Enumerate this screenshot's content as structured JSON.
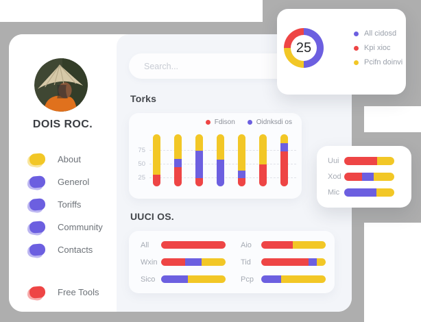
{
  "palette": {
    "red": "#ee4545",
    "purple": "#6c5fe0",
    "yellow": "#f2c726",
    "gray_background": "#aeaeae",
    "content_background": "#f3f5f9"
  },
  "profile": {
    "name": "DOIS ROC."
  },
  "sidebar": {
    "menu": [
      {
        "label": "About",
        "icon_color": "yellow"
      },
      {
        "label": "Generol",
        "icon_color": "purple"
      },
      {
        "label": "Toriffs",
        "icon_color": "purple"
      },
      {
        "label": "Community",
        "icon_color": "purple"
      },
      {
        "label": "Contacts",
        "icon_color": "purple"
      },
      {
        "label": "Free Tools",
        "icon_color": "red",
        "spacer_before": true
      }
    ]
  },
  "search": {
    "placeholder": "Search..."
  },
  "sections": {
    "torks": "Torks",
    "uuci": "UUCI OS."
  },
  "chart_data": [
    {
      "id": "torks",
      "type": "bar",
      "title": "Torks",
      "stacked": true,
      "grid": "horizontal-dashed",
      "y_ticks": [
        75,
        50,
        25
      ],
      "axis_range": [
        0,
        110
      ],
      "bar_span": [
        9,
        105
      ],
      "legend": [
        {
          "label": "Fdison",
          "color": "red"
        },
        {
          "label": "Oidnksdi os",
          "color": "purple"
        }
      ],
      "series": [
        {
          "name": "Fdison",
          "color": "red",
          "values": [
            21,
            35,
            15,
            0,
            15,
            40,
            65
          ]
        },
        {
          "name": "Oidnksdi os",
          "color": "purple",
          "values": [
            0,
            16,
            51,
            49,
            14,
            0,
            14
          ]
        },
        {
          "name": "top-fill",
          "color": "yellow",
          "values": [
            75,
            45,
            30,
            56,
            67,
            56,
            17
          ]
        }
      ]
    },
    {
      "id": "kpi-donut",
      "type": "pie",
      "center_label": "25",
      "legend": [
        {
          "label": "All cidosd",
          "color": "purple"
        },
        {
          "label": "Kpi xioc",
          "color": "red"
        },
        {
          "label": "Pcifn doinvi",
          "color": "yellow"
        }
      ],
      "arcs": [
        {
          "color": "purple",
          "from": 0,
          "to": 50
        },
        {
          "color": "yellow",
          "from": 50,
          "to": 75
        },
        {
          "color": "red",
          "from": 75,
          "to": 100
        }
      ]
    },
    {
      "id": "uuci",
      "type": "hbar",
      "title": "UUCI OS.",
      "rows": [
        {
          "label": "All",
          "segments": [
            {
              "color": "red",
              "pct": 100
            }
          ]
        },
        {
          "label": "Wxin",
          "segments": [
            {
              "color": "red",
              "pct": 37
            },
            {
              "color": "purple",
              "pct": 26
            },
            {
              "color": "yellow",
              "pct": 37
            }
          ]
        },
        {
          "label": "Sico",
          "segments": [
            {
              "color": "purple",
              "pct": 42
            },
            {
              "color": "yellow",
              "pct": 58
            }
          ]
        },
        {
          "label": "Aio",
          "segments": [
            {
              "color": "red",
              "pct": 49
            },
            {
              "color": "yellow",
              "pct": 51
            }
          ]
        },
        {
          "label": "Tid",
          "segments": [
            {
              "color": "red",
              "pct": 73
            },
            {
              "color": "purple",
              "pct": 13
            },
            {
              "color": "yellow",
              "pct": 14
            }
          ]
        },
        {
          "label": "Pcp",
          "segments": [
            {
              "color": "purple",
              "pct": 31
            },
            {
              "color": "yellow",
              "pct": 69
            }
          ]
        }
      ]
    },
    {
      "id": "side-stats",
      "type": "hbar",
      "rows": [
        {
          "label": "Uui",
          "segments": [
            {
              "color": "red",
              "pct": 66
            },
            {
              "color": "yellow",
              "pct": 34
            }
          ]
        },
        {
          "label": "Xod",
          "segments": [
            {
              "color": "red",
              "pct": 36
            },
            {
              "color": "purple",
              "pct": 23
            },
            {
              "color": "yellow",
              "pct": 41
            }
          ]
        },
        {
          "label": "Mic",
          "segments": [
            {
              "color": "purple",
              "pct": 65
            },
            {
              "color": "yellow",
              "pct": 35
            }
          ]
        }
      ]
    }
  ]
}
